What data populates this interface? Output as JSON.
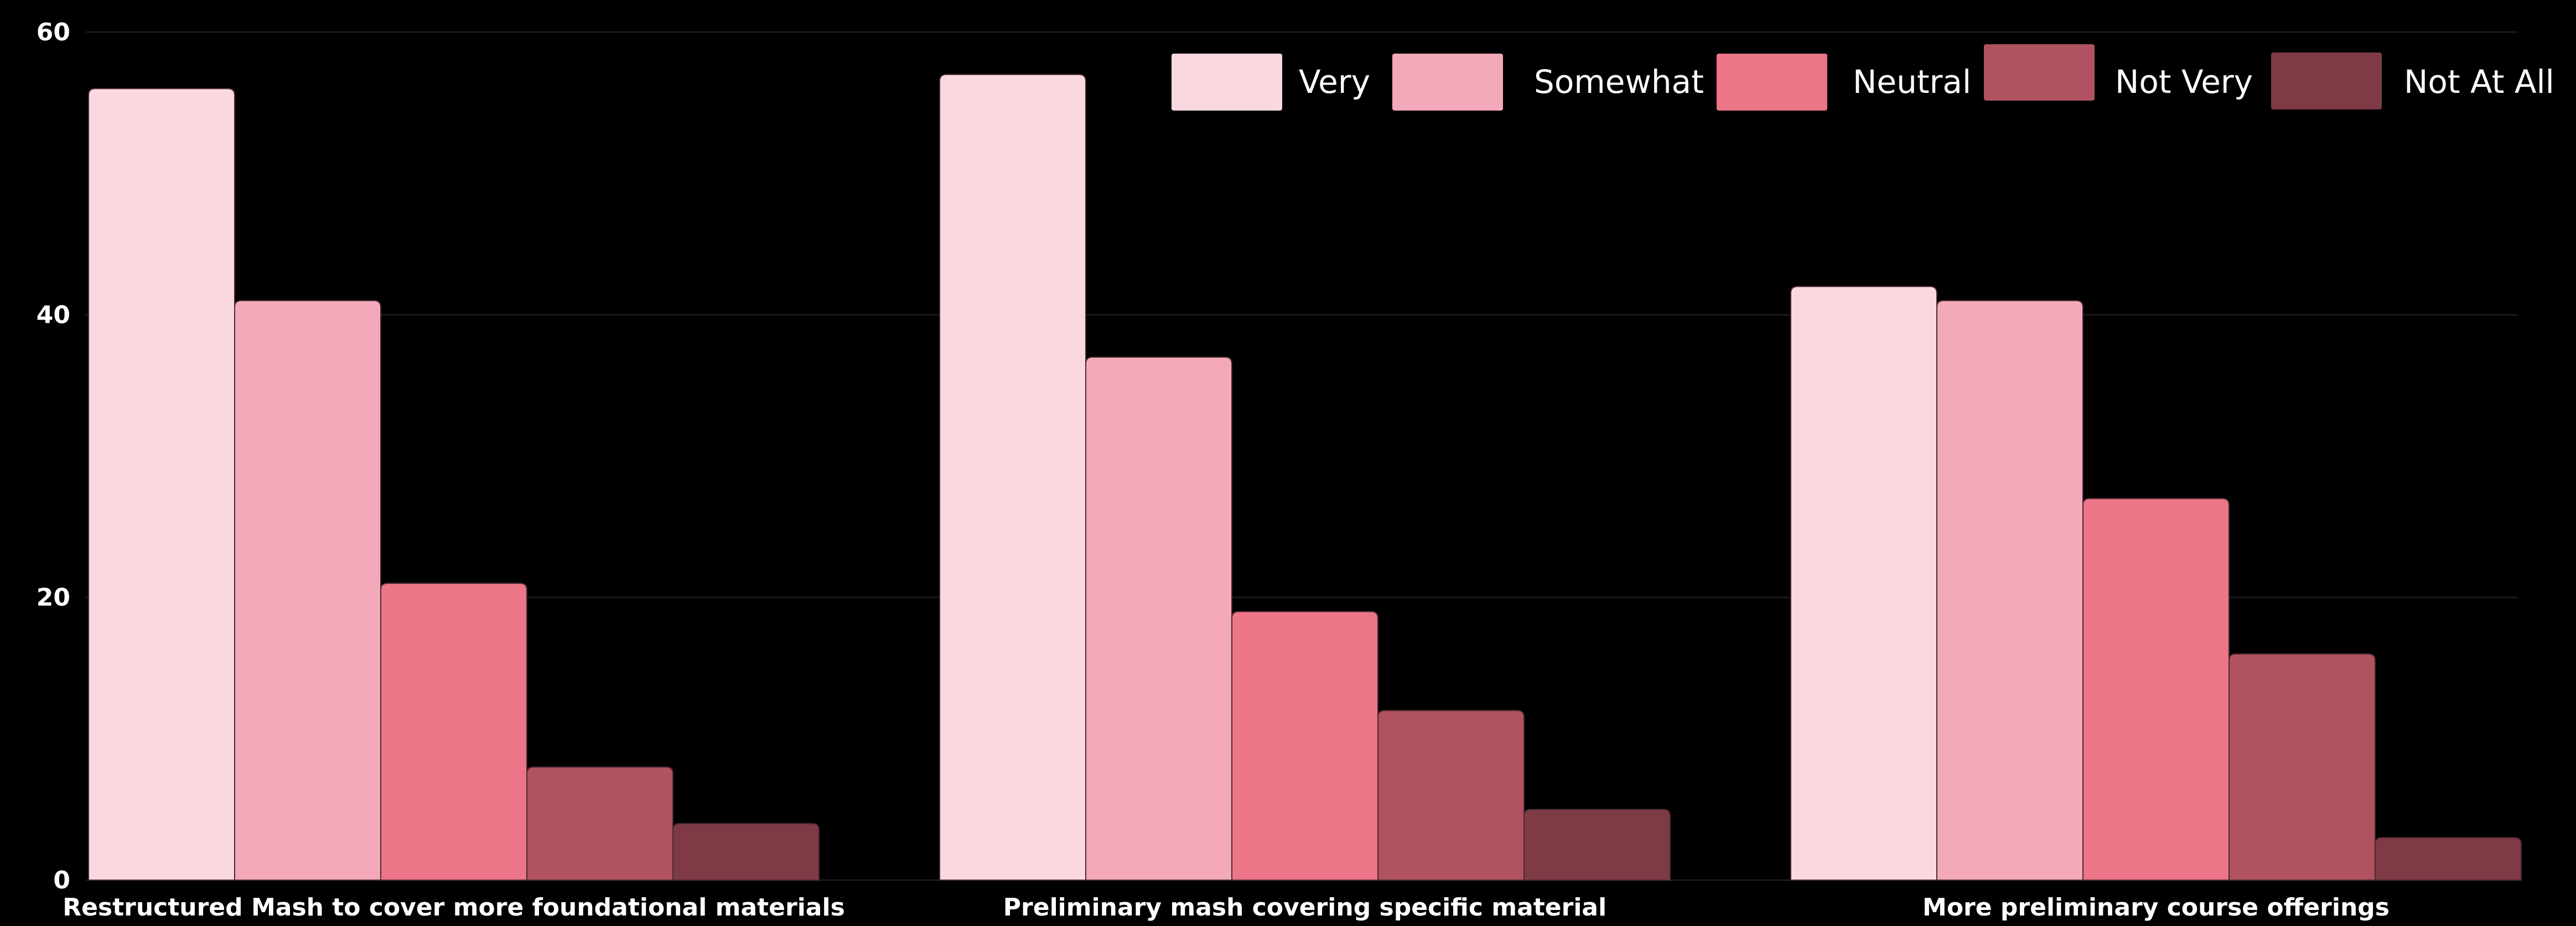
{
  "chart_data": {
    "type": "bar",
    "categories": [
      "Restructured Mash to cover more foundational materials",
      "Preliminary mash covering specific material",
      "More preliminary course offerings"
    ],
    "series": [
      {
        "name": "Very",
        "color": "#f9d9df",
        "values": [
          56,
          57,
          42
        ]
      },
      {
        "name": "Somewhat",
        "color": "#f3a9ba",
        "values": [
          41,
          37,
          41
        ]
      },
      {
        "name": "Neutral",
        "color": "#ec7587",
        "values": [
          21,
          19,
          27
        ]
      },
      {
        "name": "Not Very",
        "color": "#b0525f",
        "values": [
          8,
          12,
          16
        ]
      },
      {
        "name": "Not At All",
        "color": "#7e3a45",
        "values": [
          4,
          5,
          3
        ]
      }
    ],
    "ylim": [
      0,
      60
    ],
    "yticks": [
      "0",
      "20",
      "40",
      "60"
    ],
    "grid": true,
    "legend_position": "top-right",
    "title": "",
    "xlabel": "",
    "ylabel": ""
  }
}
